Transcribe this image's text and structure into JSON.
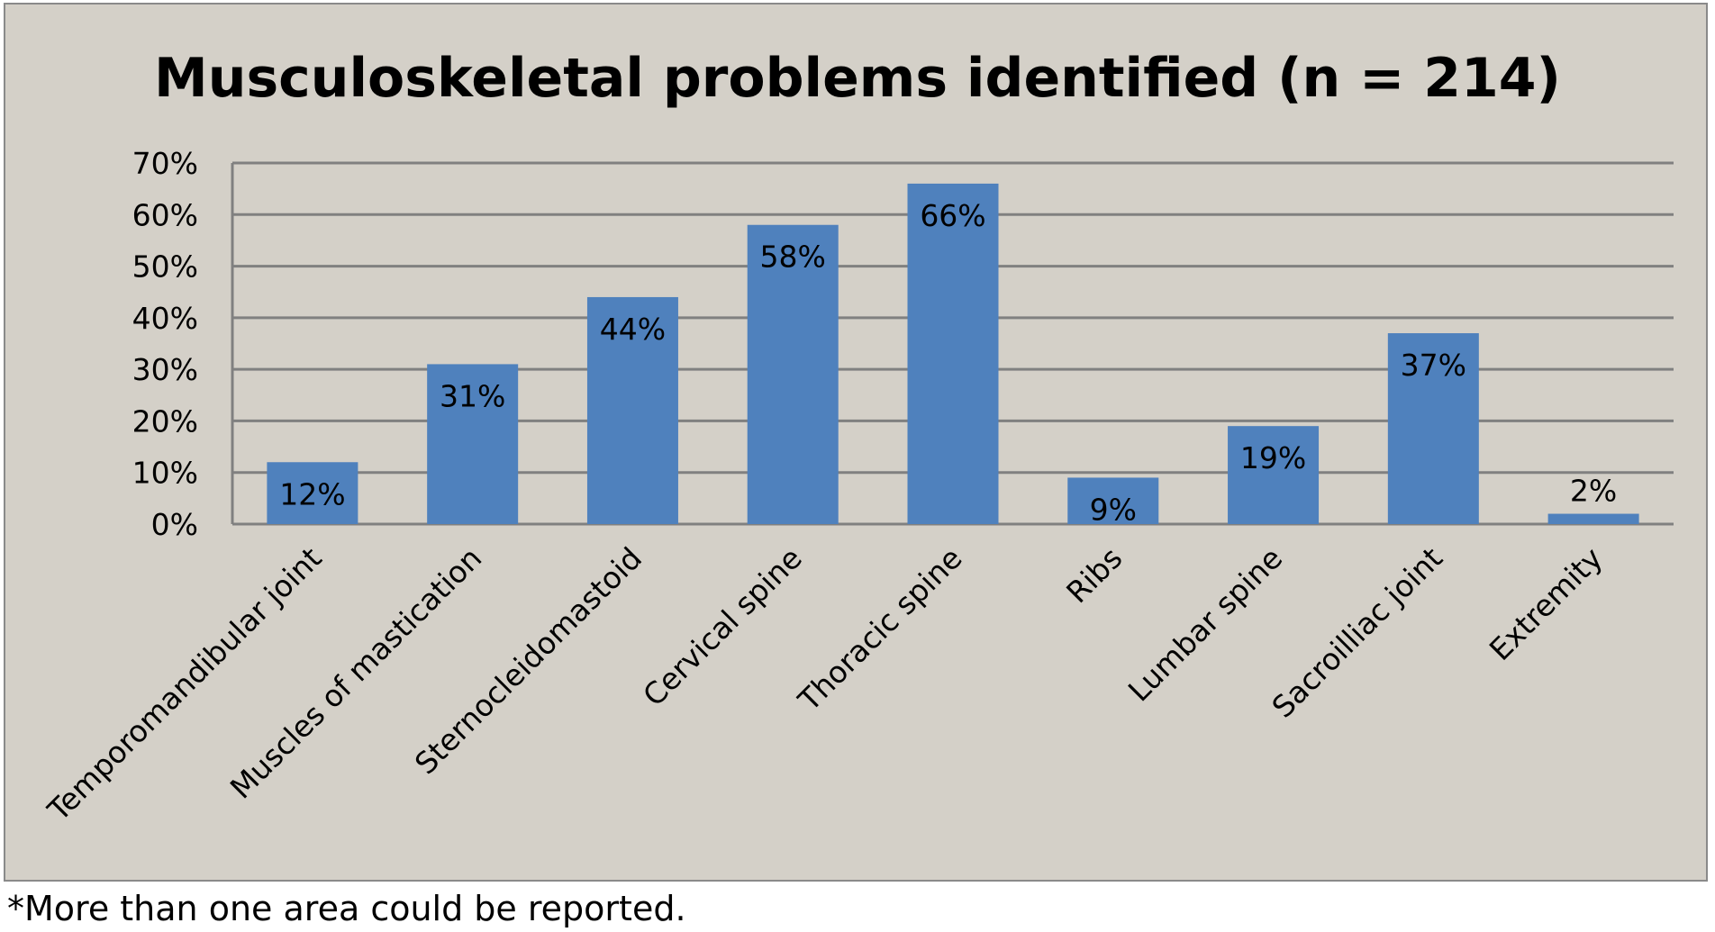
{
  "footnote": "*More than one area could be reported.",
  "colors": {
    "bar": "#4f81bd",
    "background": "#d4d0c8",
    "gridline": "#808080"
  },
  "chart_data": {
    "type": "bar",
    "title": "Musculoskeletal problems identified (n = 214)",
    "categories": [
      "Temporomandibular joint",
      "Muscles of mastication",
      "Sternocleidomastoid",
      "Cervical spine",
      "Thoracic spine",
      "Ribs",
      "Lumbar spine",
      "Sacroilliac joint",
      "Extremity"
    ],
    "values": [
      12,
      31,
      44,
      58,
      66,
      9,
      19,
      37,
      2
    ],
    "data_labels": [
      "12%",
      "31%",
      "44%",
      "58%",
      "66%",
      "9%",
      "19%",
      "37%",
      "2%"
    ],
    "yticks": [
      "0%",
      "10%",
      "20%",
      "30%",
      "40%",
      "50%",
      "60%",
      "70%"
    ],
    "ylim": [
      0,
      70
    ],
    "grid": true,
    "legend": "none",
    "xlabel": "",
    "ylabel": ""
  }
}
